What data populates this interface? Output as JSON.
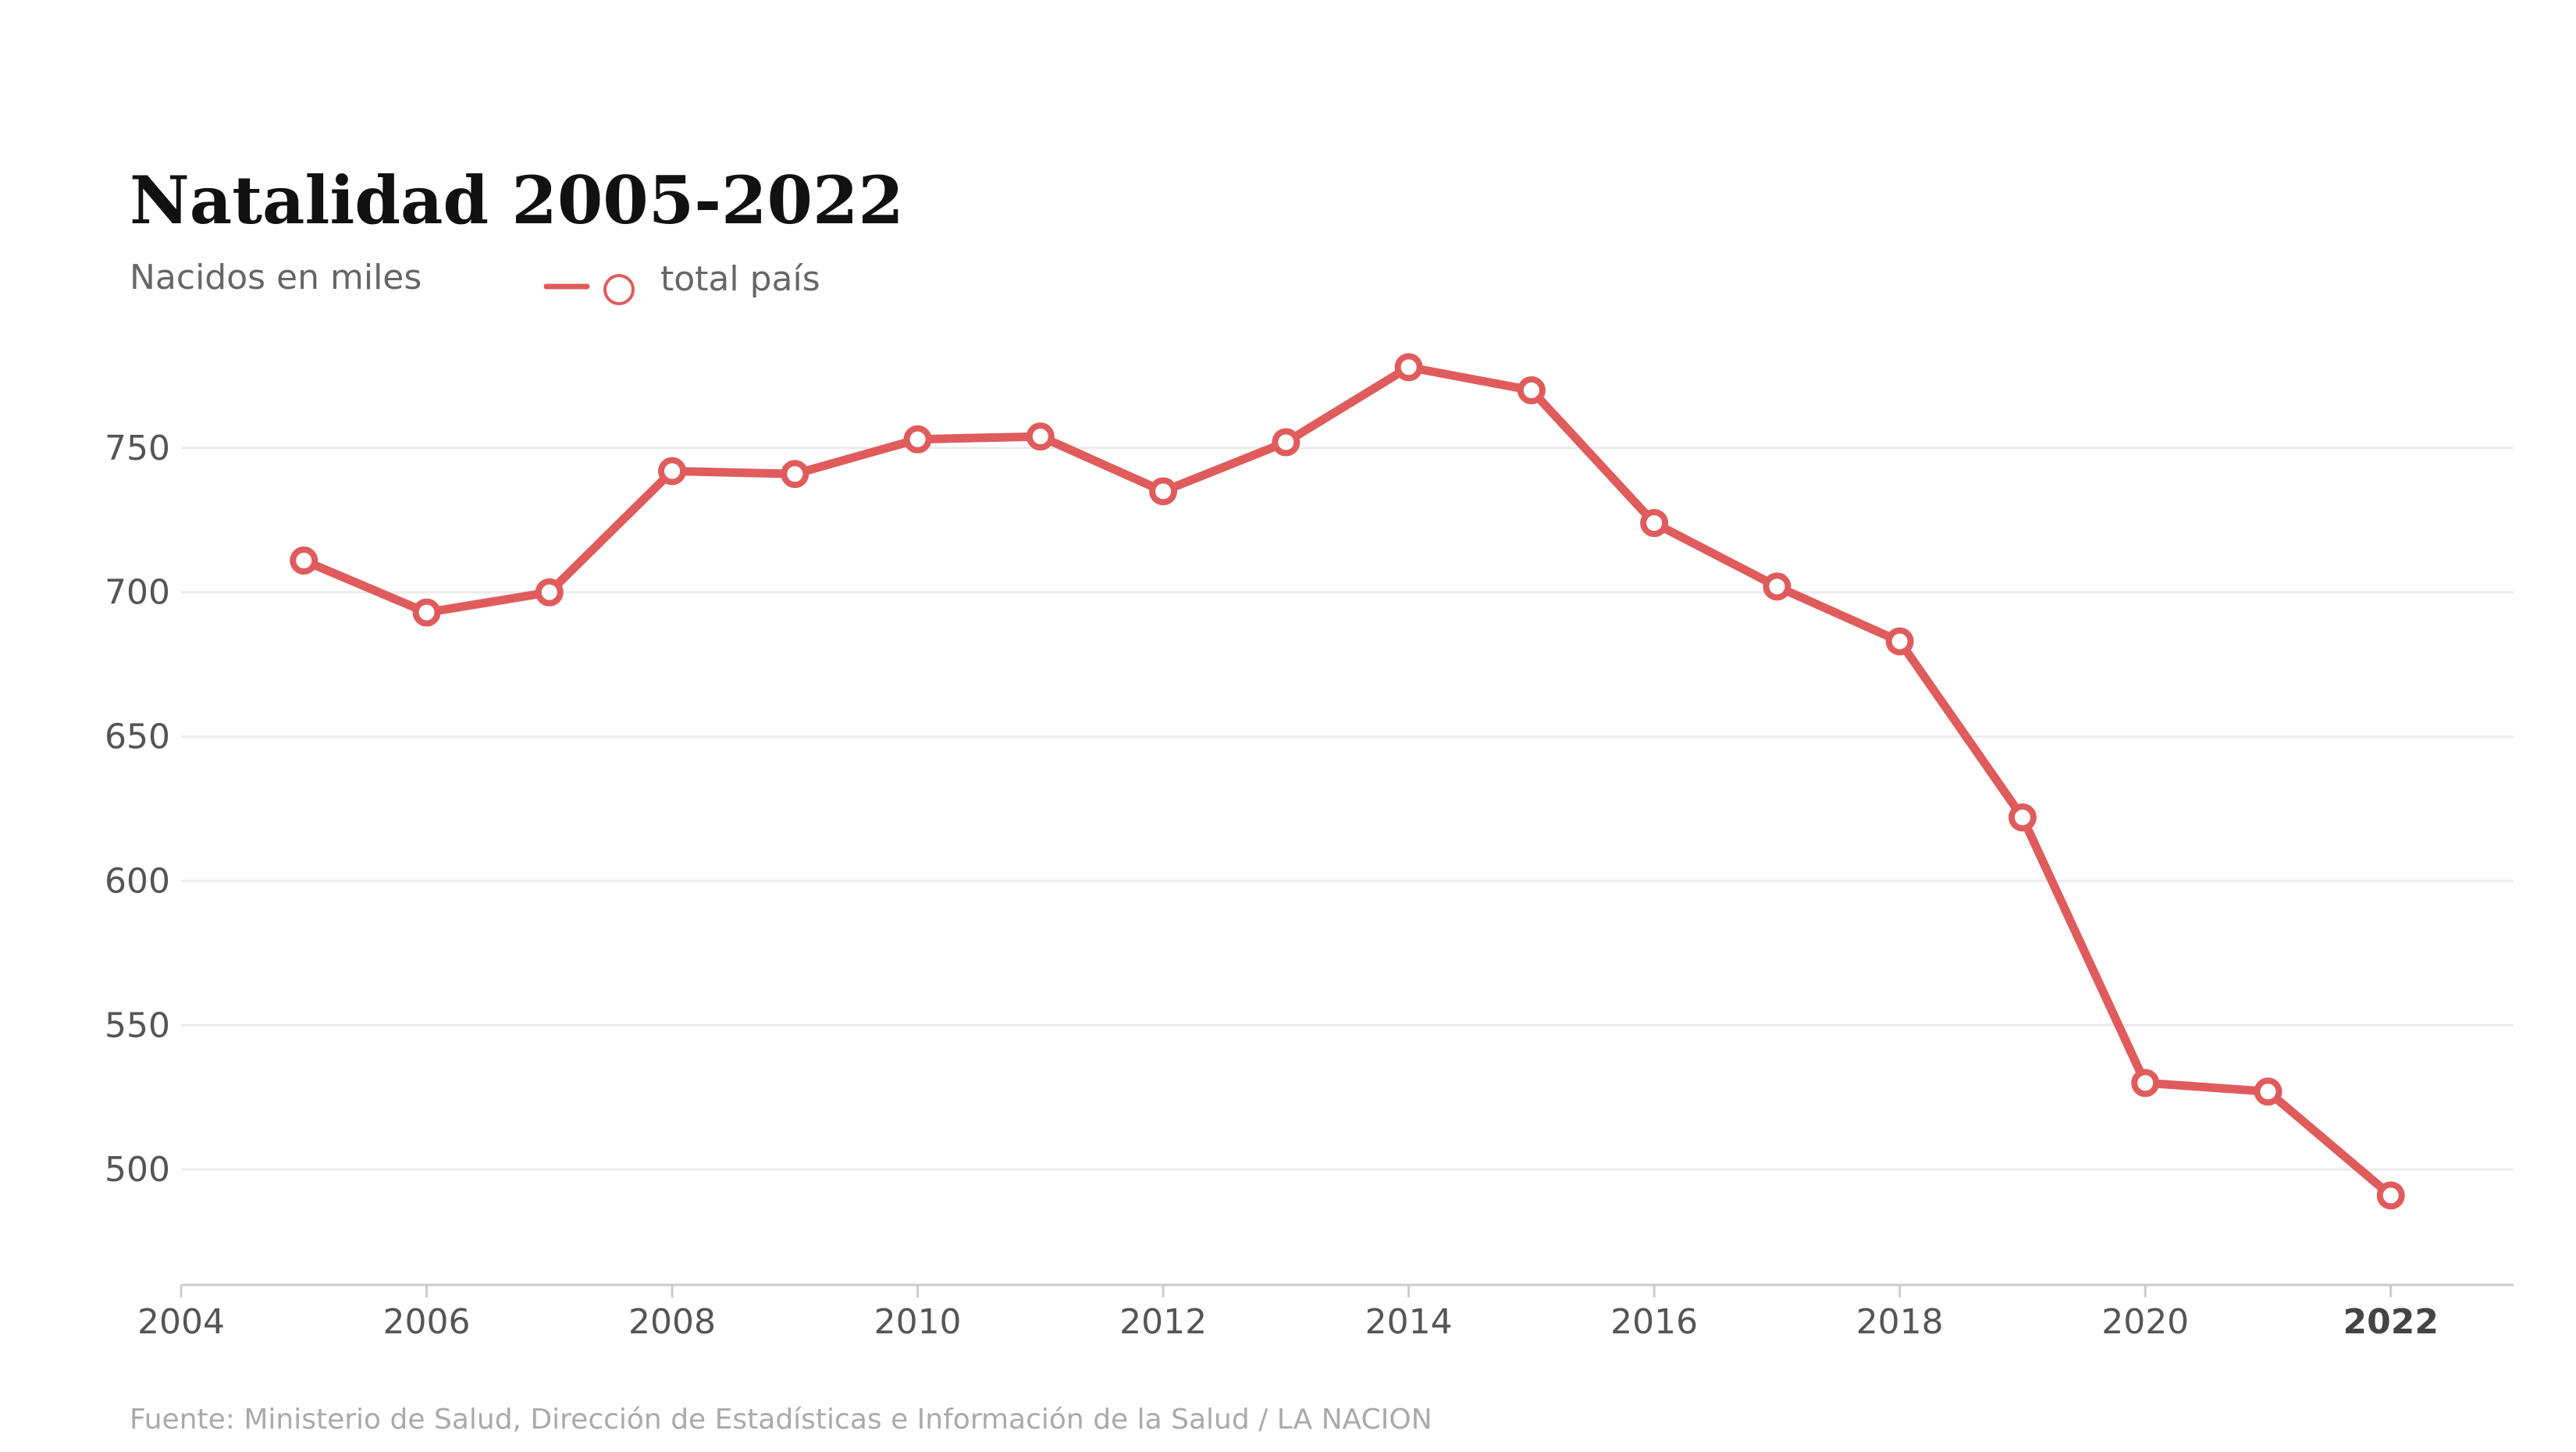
{
  "chart_data": {
    "type": "line",
    "title": "Natalidad 2005-2022",
    "subtitle": "Nacidos en miles",
    "source": "Fuente: Ministerio de Salud, Dirección de Estadísticas e Información de la Salud / LA NACION",
    "legend_placement": "top-left",
    "grid": true,
    "colors": {
      "series": "#e05c5c",
      "marker_fill": "#ffffff",
      "grid": "#ececec",
      "axis": "#cccccc"
    },
    "xlim": [
      2004,
      2023
    ],
    "ylim": [
      460,
      790
    ],
    "x_ticks": [
      "2004",
      "2006",
      "2008",
      "2010",
      "2012",
      "2014",
      "2016",
      "2018",
      "2020",
      "2022"
    ],
    "x_tick_values": [
      2004,
      2006,
      2008,
      2010,
      2012,
      2014,
      2016,
      2018,
      2020,
      2022
    ],
    "x_tick_bold": "2022",
    "y_ticks": [
      "500",
      "550",
      "600",
      "650",
      "700",
      "750"
    ],
    "y_tick_values": [
      500,
      550,
      600,
      650,
      700,
      750
    ],
    "x": [
      2005,
      2006,
      2007,
      2008,
      2009,
      2010,
      2011,
      2012,
      2013,
      2014,
      2015,
      2016,
      2017,
      2018,
      2019,
      2020,
      2021,
      2022
    ],
    "series": [
      {
        "name": "total país",
        "values": [
          711,
          693,
          700,
          742,
          741,
          753,
          754,
          735,
          752,
          778,
          770,
          724,
          702,
          683,
          622,
          530,
          527,
          491
        ]
      }
    ]
  }
}
